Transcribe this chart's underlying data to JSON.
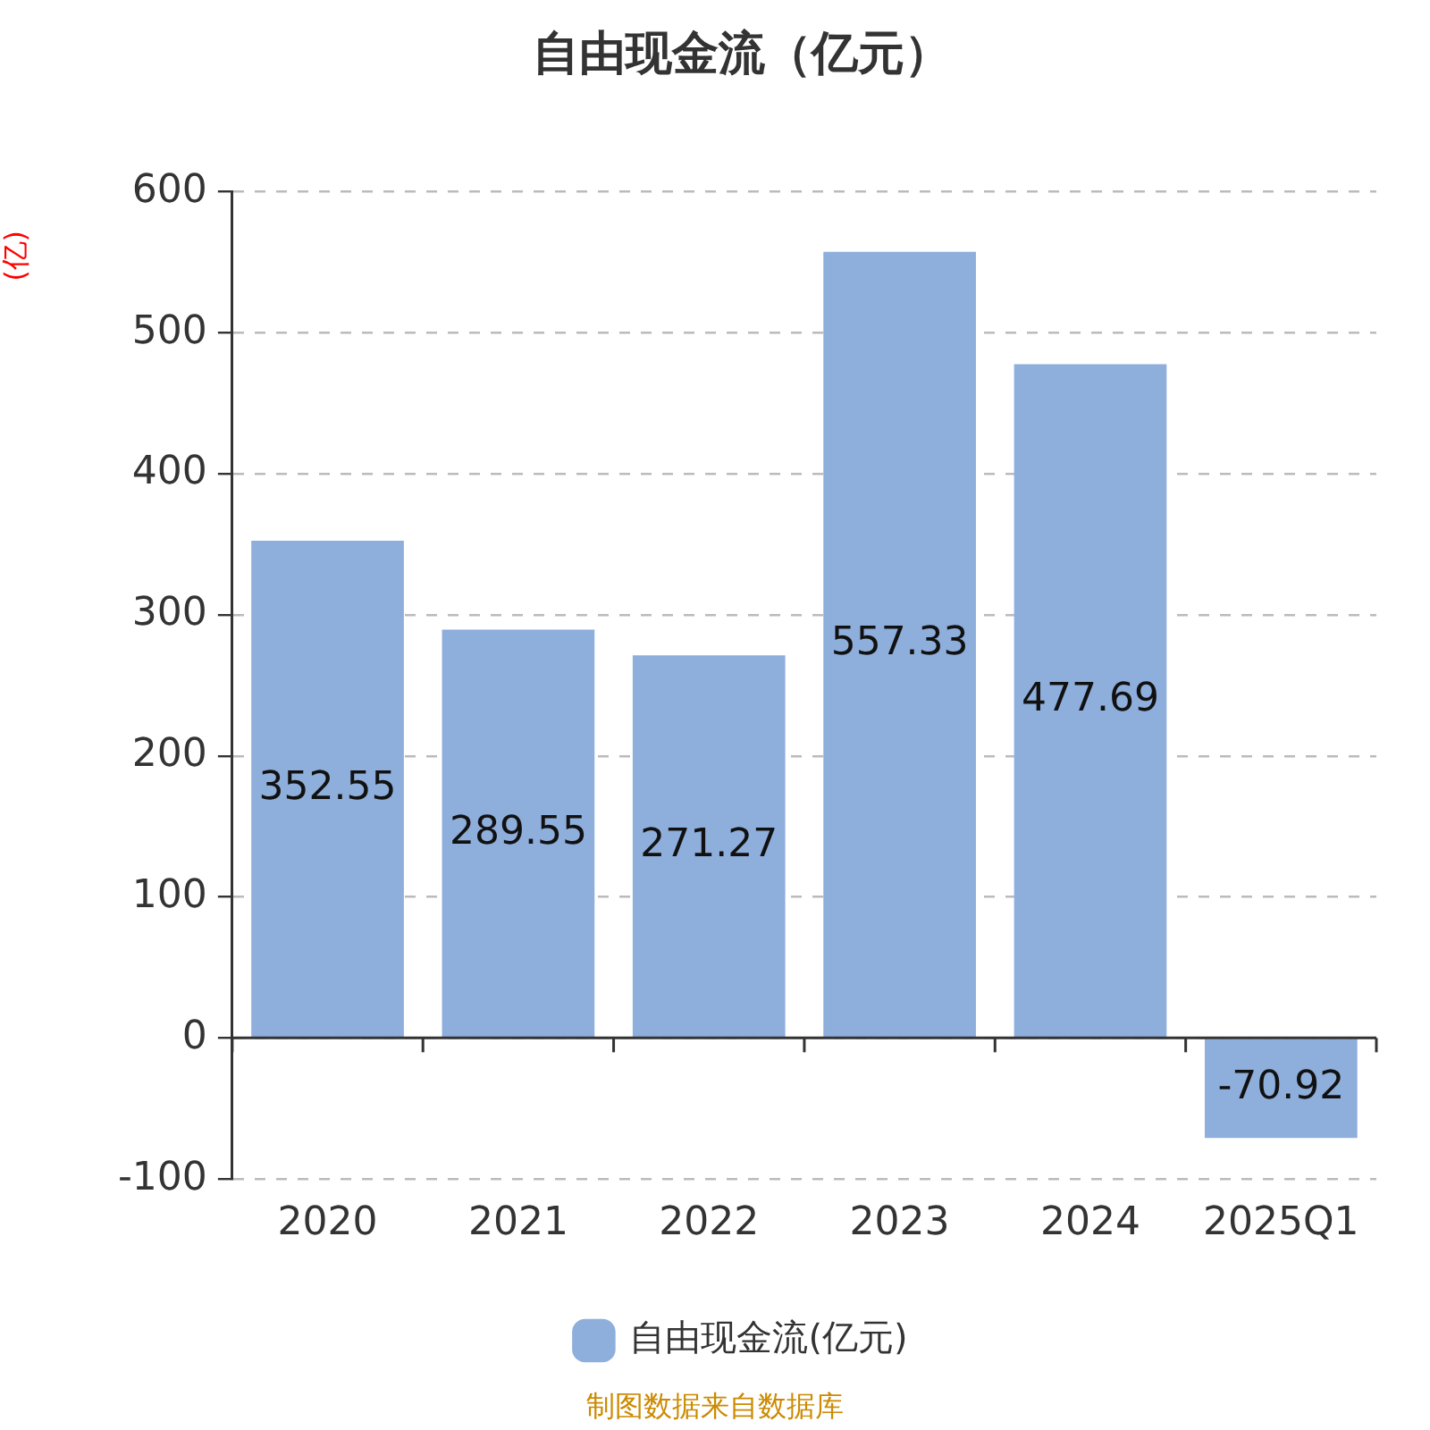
{
  "chart_data": {
    "type": "bar",
    "title": "自由现金流（亿元）",
    "ylabel": "(亿)",
    "categories": [
      "2020",
      "2021",
      "2022",
      "2023",
      "2024",
      "2025Q1"
    ],
    "series": [
      {
        "name": "自由现金流(亿元)",
        "color": "#8eaedb",
        "values": [
          352.55,
          289.55,
          271.27,
          557.33,
          477.69,
          -70.92
        ]
      }
    ],
    "ylim": [
      -100,
      600
    ],
    "yticks": [
      -100,
      0,
      100,
      200,
      300,
      400,
      500,
      600
    ],
    "grid": "y",
    "legend": "bottom",
    "data_labels": true,
    "annotations": [
      "制图数据来自数据库"
    ]
  }
}
